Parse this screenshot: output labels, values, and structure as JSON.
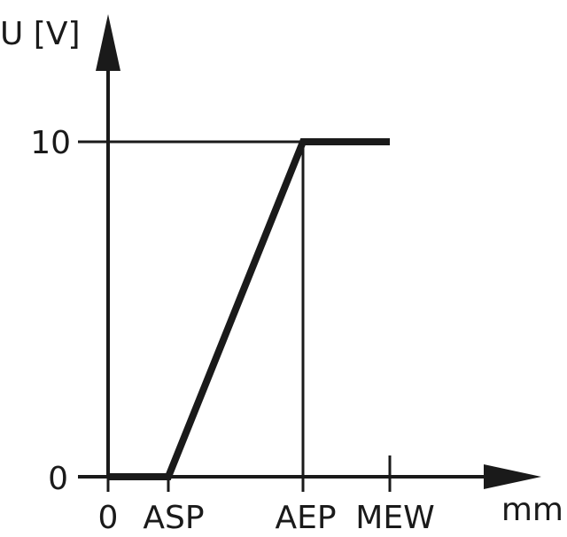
{
  "chart_data": {
    "type": "line",
    "title": "",
    "ylabel": "U [V]",
    "xlabel": "mm",
    "x_ticks": [
      "0",
      "ASP",
      "AEP",
      "MEW"
    ],
    "y_ticks": [
      "0",
      "10"
    ],
    "series": [
      {
        "points": [
          [
            "0",
            0
          ],
          [
            "ASP",
            0
          ],
          [
            "AEP",
            10
          ],
          [
            "MEW",
            10
          ]
        ]
      }
    ],
    "grid": false,
    "colors": {
      "line": "#1a1a1a",
      "background": "#ffffff"
    }
  }
}
